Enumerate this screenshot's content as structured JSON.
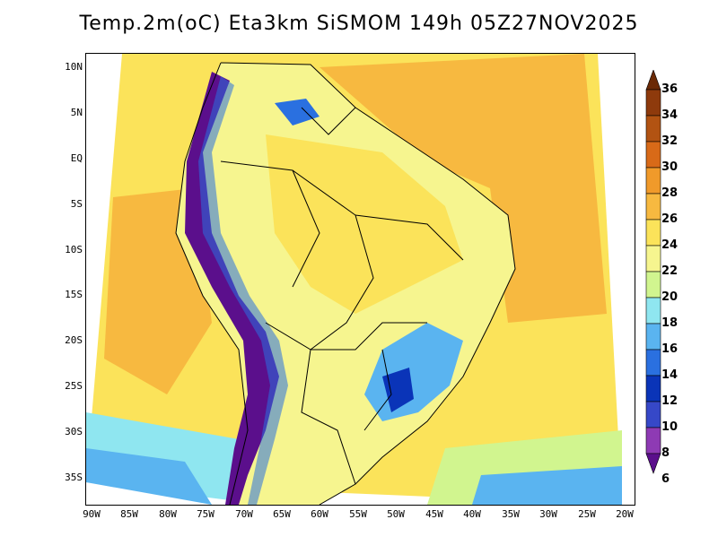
{
  "title": "Temp.2m(oC) Eta3km SiSMOM 149h 05Z27NOV2025",
  "lat_ticks": [
    "10N",
    "5N",
    "EQ",
    "5S",
    "10S",
    "15S",
    "20S",
    "25S",
    "30S",
    "35S"
  ],
  "lon_ticks": [
    "90W",
    "85W",
    "80W",
    "75W",
    "70W",
    "65W",
    "60W",
    "55W",
    "50W",
    "45W",
    "40W",
    "35W",
    "30W",
    "25W",
    "20W"
  ],
  "colorbar": {
    "labels": [
      "36",
      "34",
      "32",
      "30",
      "28",
      "26",
      "24",
      "22",
      "20",
      "18",
      "16",
      "14",
      "12",
      "10",
      "8",
      "6"
    ],
    "colors": [
      "#6b2a06",
      "#8e3a0c",
      "#b25312",
      "#d86a18",
      "#f09a2a",
      "#f7b940",
      "#fbe35a",
      "#f6f58f",
      "#d1f58f",
      "#8fe6f0",
      "#5ab4f0",
      "#2a70e0",
      "#0a34b8",
      "#3648c8",
      "#8e3ab4",
      "#5b0f8c"
    ]
  },
  "map": {
    "region": "South America",
    "field": "2m temperature",
    "units": "oC",
    "ocean_color": "#f7b940",
    "land_color": "#f6f58f"
  }
}
